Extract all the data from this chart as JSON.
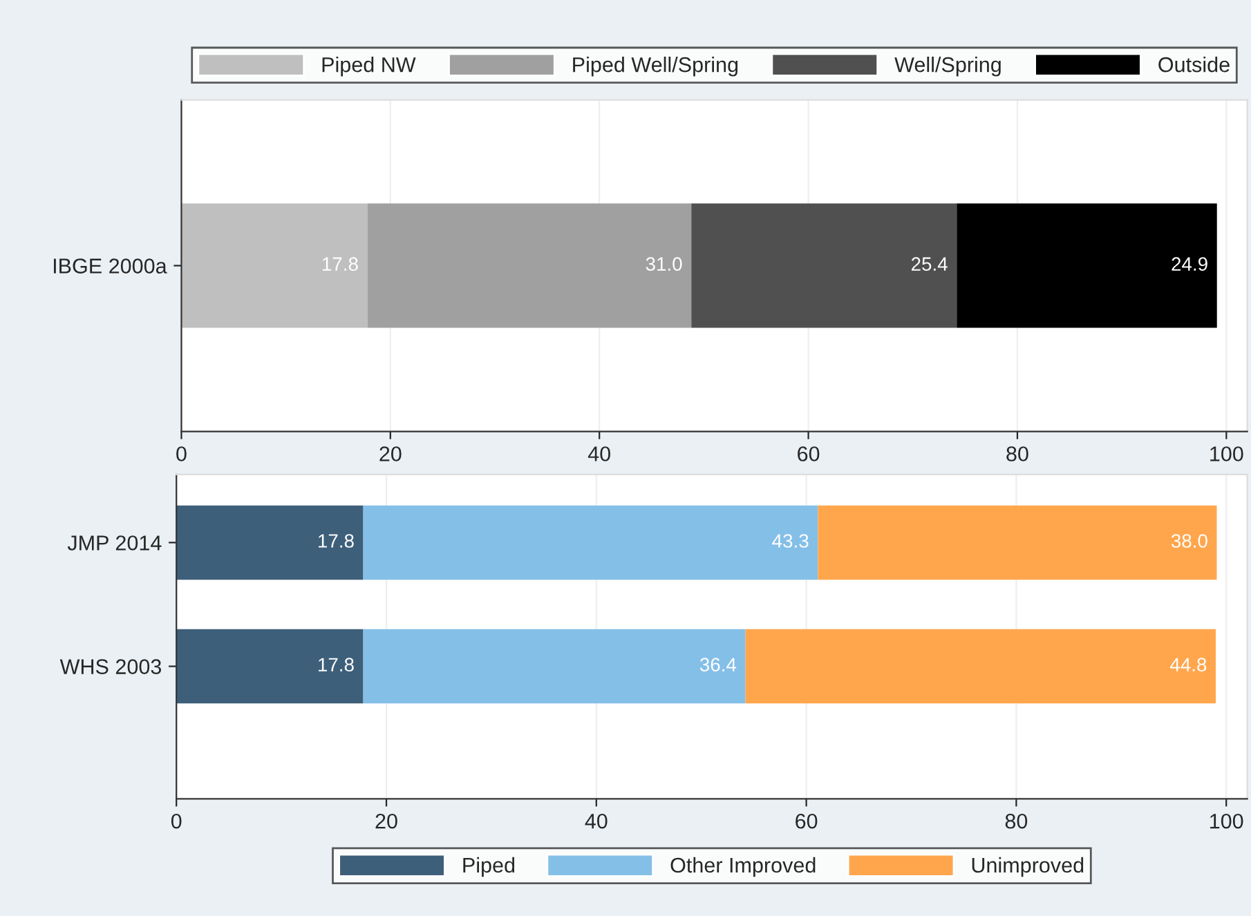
{
  "chart_data": [
    {
      "type": "bar",
      "orientation": "horizontal",
      "stacked": true,
      "categories": [
        "IBGE 2000a"
      ],
      "xlim": [
        0,
        102
      ],
      "xticks": [
        0,
        20,
        40,
        60,
        80,
        100
      ],
      "grid": "x",
      "legend": "top",
      "series": [
        {
          "name": "Piped NW",
          "color": "#bfbfbf",
          "values": [
            17.8
          ],
          "value_labels": [
            "17.8"
          ]
        },
        {
          "name": "Piped Well/Spring",
          "color": "#a0a0a0",
          "values": [
            31.0
          ],
          "value_labels": [
            "31.0"
          ]
        },
        {
          "name": "Well/Spring",
          "color": "#505050",
          "values": [
            25.4
          ],
          "value_labels": [
            "25.4"
          ]
        },
        {
          "name": "Outside",
          "color": "#000000",
          "values": [
            24.9
          ],
          "value_labels": [
            "24.9"
          ]
        }
      ]
    },
    {
      "type": "bar",
      "orientation": "horizontal",
      "stacked": true,
      "categories": [
        "JMP 2014",
        "WHS 2003"
      ],
      "xlim": [
        0,
        102
      ],
      "xticks": [
        0,
        20,
        40,
        60,
        80,
        100
      ],
      "grid": "x",
      "legend": "bottom",
      "series": [
        {
          "name": "Piped",
          "color": "#3e5f7a",
          "values": [
            17.8,
            17.8
          ],
          "value_labels": [
            "17.8",
            "17.8"
          ]
        },
        {
          "name": "Other Improved",
          "color": "#84bfe8",
          "values": [
            43.3,
            36.4
          ],
          "value_labels": [
            "43.3",
            "36.4"
          ]
        },
        {
          "name": "Unimproved",
          "color": "#ffa64d",
          "values": [
            38.0,
            44.8
          ],
          "value_labels": [
            "38.0",
            "44.8"
          ]
        }
      ]
    }
  ]
}
